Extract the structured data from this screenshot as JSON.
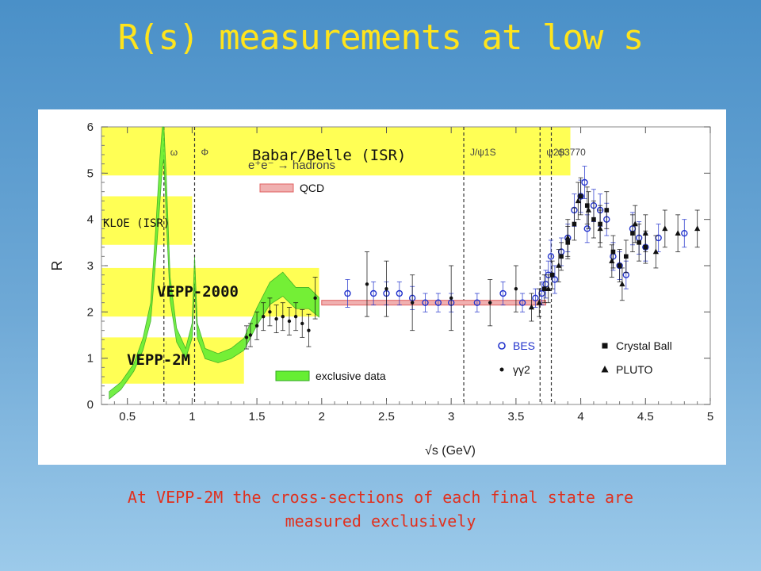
{
  "slide": {
    "title": "R(s) measurements at low s",
    "caption_line1": "At VEPP-2M the cross-sections of each final state are",
    "caption_line2": "measured exclusively"
  },
  "colors": {
    "background_top": "#4a90c8",
    "title": "#ffe41c",
    "caption": "#e0301e",
    "band": "#ffff55",
    "exclusive_fill": "#66ee33",
    "qcd": "#e06060",
    "bes": "#2233cc"
  },
  "chart_data": {
    "type": "scatter",
    "xlabel": "√s   (GeV)",
    "ylabel": "R",
    "xlim": [
      0.3,
      5
    ],
    "ylim": [
      0,
      6
    ],
    "xticks": [
      "0.5",
      "1",
      "1.5",
      "2",
      "2.5",
      "3",
      "3.5",
      "4",
      "4.5",
      "5"
    ],
    "yticks": [
      "0",
      "1",
      "2",
      "3",
      "4",
      "5",
      "6"
    ],
    "reaction_label": "e⁺e⁻ → hadrons",
    "regions": [
      {
        "label": "Babar/Belle (ISR)",
        "x": [
          0.3,
          3.92
        ],
        "y": [
          4.95,
          6.0
        ]
      },
      {
        "label": "KLOE (ISR)",
        "x": [
          0.3,
          1.0
        ],
        "y": [
          3.45,
          4.5
        ]
      },
      {
        "label": "VEPP-2000",
        "x": [
          0.3,
          1.98
        ],
        "y": [
          1.9,
          2.95
        ]
      },
      {
        "label": "VEPP-2M",
        "x": [
          0.3,
          1.4
        ],
        "y": [
          0.45,
          1.45
        ]
      }
    ],
    "resonances": [
      {
        "label": "ω",
        "x": 0.782
      },
      {
        "label": "Φ",
        "x": 1.019
      },
      {
        "label": "J/ψ1S",
        "x": 3.097
      },
      {
        "label": "ψ2S",
        "x": 3.686
      },
      {
        "label": "ψ3770",
        "x": 3.773
      }
    ],
    "qcd": {
      "label": "QCD",
      "x": [
        2.0,
        3.73
      ],
      "y": 2.2
    },
    "exclusive_data": {
      "label": "exclusive data",
      "x": [
        0.36,
        0.45,
        0.55,
        0.62,
        0.68,
        0.72,
        0.75,
        0.77,
        0.782,
        0.8,
        0.83,
        0.88,
        0.95,
        1.0,
        1.019,
        1.04,
        1.1,
        1.2,
        1.3,
        1.4,
        1.5,
        1.6,
        1.7,
        1.8,
        1.9,
        1.98
      ],
      "y": [
        0.2,
        0.4,
        0.8,
        1.3,
        2.0,
        3.5,
        4.8,
        5.7,
        5.9,
        4.5,
        2.5,
        1.5,
        1.1,
        1.6,
        2.9,
        1.6,
        1.1,
        1.0,
        1.1,
        1.3,
        1.9,
        2.4,
        2.6,
        2.3,
        2.3,
        2.1
      ]
    },
    "series": [
      {
        "name": "BES",
        "marker": "open-circle",
        "x": [
          2.2,
          2.4,
          2.5,
          2.6,
          2.7,
          2.8,
          2.9,
          3.0,
          3.2,
          3.4,
          3.55,
          3.65,
          3.7,
          3.73,
          3.75,
          3.77,
          3.8,
          3.85,
          3.9,
          3.95,
          4.0,
          4.03,
          4.05,
          4.1,
          4.15,
          4.2,
          4.25,
          4.3,
          4.35,
          4.4,
          4.45,
          4.5,
          4.6,
          4.8
        ],
        "y": [
          2.4,
          2.4,
          2.4,
          2.4,
          2.3,
          2.2,
          2.2,
          2.2,
          2.2,
          2.4,
          2.2,
          2.3,
          2.4,
          2.6,
          2.8,
          3.2,
          2.7,
          3.3,
          3.6,
          4.2,
          4.5,
          4.8,
          3.8,
          4.3,
          4.2,
          4.0,
          3.2,
          3.0,
          2.8,
          3.8,
          3.6,
          3.4,
          3.6,
          3.7
        ],
        "err": [
          0.3,
          0.25,
          0.25,
          0.25,
          0.25,
          0.2,
          0.2,
          0.2,
          0.2,
          0.25,
          0.2,
          0.2,
          0.25,
          0.3,
          0.3,
          0.35,
          0.3,
          0.3,
          0.3,
          0.35,
          0.35,
          0.35,
          0.3,
          0.35,
          0.35,
          0.35,
          0.3,
          0.3,
          0.3,
          0.35,
          0.35,
          0.3,
          0.3,
          0.3
        ]
      },
      {
        "name": "γγ2",
        "marker": "dot",
        "x": [
          1.42,
          1.45,
          1.5,
          1.55,
          1.6,
          1.65,
          1.7,
          1.75,
          1.8,
          1.85,
          1.9,
          1.95,
          2.35,
          2.5,
          2.7,
          3.0,
          3.3,
          3.5
        ],
        "y": [
          1.45,
          1.5,
          1.7,
          1.9,
          2.0,
          1.85,
          1.9,
          1.8,
          1.9,
          1.75,
          1.6,
          2.3,
          2.6,
          2.5,
          2.2,
          2.3,
          2.2,
          2.5
        ],
        "err": [
          0.25,
          0.25,
          0.3,
          0.3,
          0.3,
          0.3,
          0.3,
          0.3,
          0.3,
          0.3,
          0.35,
          0.45,
          0.7,
          0.6,
          0.6,
          0.7,
          0.5,
          0.5
        ]
      },
      {
        "name": "Crystal Ball",
        "marker": "filled-square",
        "x": [
          3.72,
          3.78,
          3.85,
          3.9,
          3.95,
          4.0,
          4.05,
          4.1,
          4.15,
          4.2,
          4.25,
          4.3,
          4.35,
          4.4,
          4.45,
          4.5
        ],
        "y": [
          2.5,
          2.8,
          3.2,
          3.5,
          3.9,
          4.5,
          4.3,
          4.0,
          3.9,
          4.2,
          3.3,
          3.0,
          3.2,
          3.7,
          3.5,
          3.4
        ],
        "err": [
          0.3,
          0.3,
          0.3,
          0.35,
          0.35,
          0.4,
          0.4,
          0.4,
          0.4,
          0.4,
          0.35,
          0.35,
          0.35,
          0.4,
          0.4,
          0.35
        ]
      },
      {
        "name": "PLUTO",
        "marker": "filled-triangle",
        "x": [
          3.62,
          3.68,
          3.75,
          3.83,
          3.9,
          3.98,
          4.06,
          4.15,
          4.24,
          4.32,
          4.42,
          4.5,
          4.58,
          4.65,
          4.75,
          4.9
        ],
        "y": [
          2.1,
          2.2,
          2.5,
          3.0,
          3.6,
          4.4,
          4.2,
          3.8,
          3.1,
          2.6,
          3.9,
          3.7,
          3.3,
          3.8,
          3.7,
          3.8
        ],
        "err": [
          0.3,
          0.3,
          0.3,
          0.35,
          0.4,
          0.4,
          0.4,
          0.4,
          0.35,
          0.35,
          0.4,
          0.4,
          0.35,
          0.4,
          0.4,
          0.4
        ]
      }
    ]
  }
}
